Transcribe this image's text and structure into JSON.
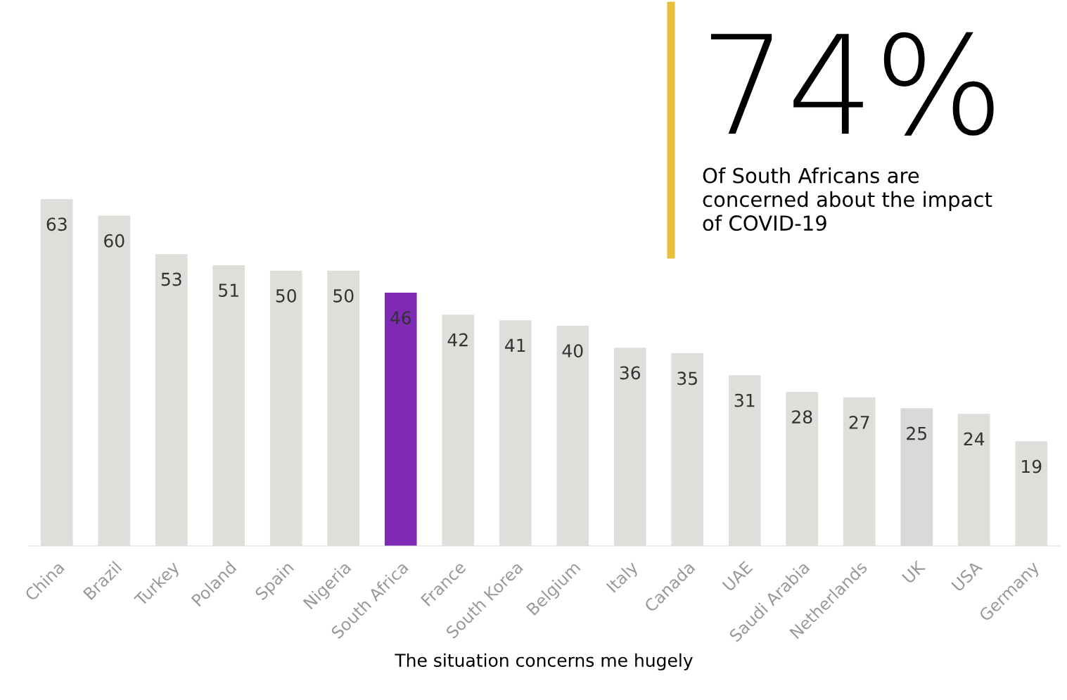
{
  "chart_data": {
    "type": "bar",
    "categories": [
      "China",
      "Brazil",
      "Turkey",
      "Poland",
      "Spain",
      "Nigeria",
      "South Africa",
      "France",
      "South Korea",
      "Belgium",
      "Italy",
      "Canada",
      "UAE",
      "Saudi Arabia",
      "Netherlands",
      "UK",
      "USA",
      "Germany"
    ],
    "values": [
      63,
      60,
      53,
      51,
      50,
      50,
      46,
      42,
      41,
      40,
      36,
      35,
      31,
      28,
      27,
      25,
      24,
      19
    ],
    "colors": [
      "#dededa",
      "#dededa",
      "#dededa",
      "#dededa",
      "#dededa",
      "#dededa",
      "#7e2ab5",
      "#dededa",
      "#dededa",
      "#dededa",
      "#dededa",
      "#dededa",
      "#dededa",
      "#dededa",
      "#dededa",
      "#d9d9d9",
      "#dededa",
      "#dededa"
    ],
    "data_labels": true,
    "xlabel": "The situation concerns me hugely",
    "annotations": [
      "74%",
      "Of South Africans are\nconcerned about the impact\nof COVID-19"
    ],
    "grid": false,
    "legend": false
  }
}
